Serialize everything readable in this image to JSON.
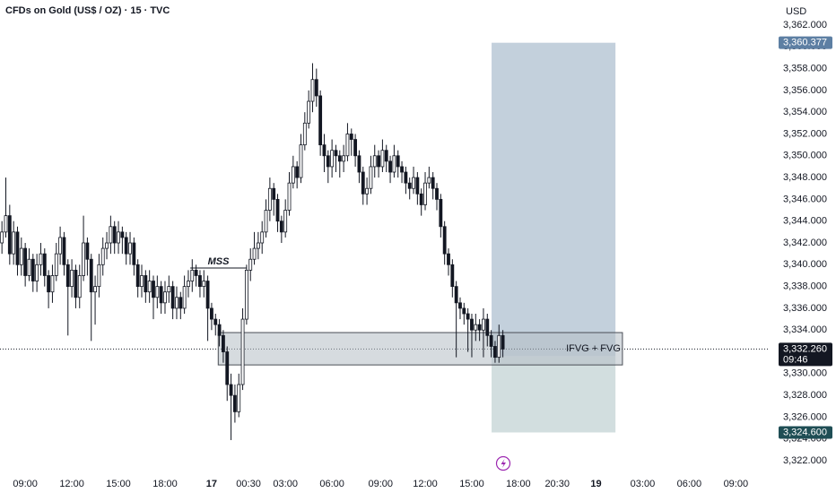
{
  "chart_data": {
    "type": "candlestick",
    "title": "CFDs on Gold (US$ / OZ) · 15 · TVC",
    "currency": "USD",
    "colors": {
      "up": "#ffffff",
      "down": "#131722",
      "edge": "#131722"
    },
    "open": [
      3342,
      3343,
      3344.5,
      3341,
      3343,
      3340,
      3341.5,
      3339,
      3340.5,
      3338.5,
      3340,
      3341,
      3339,
      3337.5,
      3339,
      3341,
      3342.5,
      3340,
      3338,
      3339.5,
      3337,
      3339,
      3342,
      3340.5,
      3337.5,
      3338,
      3340,
      3341.5,
      3342,
      3343.5,
      3342,
      3343,
      3342.5,
      3341,
      3342,
      3340,
      3338,
      3339,
      3337.5,
      3338.5,
      3337,
      3338,
      3336.5,
      3337.5,
      3338,
      3336,
      3337,
      3336,
      3338,
      3338.5,
      3339.5,
      3339,
      3338,
      3338.5,
      3336,
      3335,
      3334.5,
      3333.5,
      3332,
      3329,
      3328,
      3326.5,
      3329,
      3335,
      3339.5,
      3340.5,
      3341.5,
      3342,
      3343,
      3345,
      3347,
      3346,
      3344,
      3343,
      3345,
      3347.5,
      3349,
      3348,
      3351,
      3353,
      3355,
      3357,
      3355.5,
      3351,
      3350,
      3349,
      3350.5,
      3350,
      3349.5,
      3350,
      3352,
      3351.5,
      3350,
      3348.5,
      3346.5,
      3347,
      3349,
      3350,
      3349,
      3350.5,
      3349.5,
      3348.5,
      3350,
      3349,
      3348.5,
      3347.5,
      3347,
      3348,
      3346.5,
      3345.5,
      3347.5,
      3348,
      3347,
      3346,
      3343.5,
      3341,
      3340,
      3338,
      3336.5,
      3336,
      3335.5,
      3335,
      3334,
      3334.5,
      3334,
      3335,
      3333.5,
      3332.5,
      3331.5,
      3333.5
    ],
    "high": [
      3344,
      3348,
      3345.5,
      3344,
      3343.5,
      3342.5,
      3342,
      3341.5,
      3341,
      3341,
      3342,
      3341.5,
      3339.5,
      3340,
      3342,
      3343.5,
      3343,
      3340.5,
      3340.5,
      3340,
      3340,
      3344.5,
      3342.5,
      3341,
      3339,
      3341,
      3342.5,
      3343,
      3344.5,
      3344,
      3344,
      3343.5,
      3343,
      3343,
      3342.5,
      3340.5,
      3340,
      3339.5,
      3339.5,
      3339,
      3339,
      3338.5,
      3338.5,
      3339,
      3338.5,
      3338,
      3337.5,
      3339,
      3339.5,
      3340.5,
      3340,
      3339.5,
      3339.5,
      3339,
      3336.5,
      3335.5,
      3335,
      3334,
      3332.5,
      3330,
      3329,
      3330,
      3336,
      3340,
      3341.5,
      3343,
      3343,
      3344,
      3346,
      3348,
      3347.5,
      3346.5,
      3344.5,
      3346,
      3348.5,
      3350,
      3349.5,
      3352,
      3354,
      3356,
      3358.5,
      3358,
      3356,
      3352,
      3350.5,
      3351.5,
      3351,
      3350.5,
      3351,
      3353,
      3352.5,
      3352,
      3350.5,
      3349,
      3348,
      3350,
      3351,
      3350.5,
      3351.5,
      3351,
      3350,
      3351,
      3350.5,
      3349.5,
      3349,
      3348,
      3349,
      3348.5,
      3347,
      3348.5,
      3349,
      3348.5,
      3347.5,
      3346.5,
      3344,
      3341.5,
      3340.5,
      3338.5,
      3337,
      3336.5,
      3336,
      3335.5,
      3335.5,
      3335,
      3336,
      3335.5,
      3334,
      3333,
      3334.5,
      3334
    ],
    "low": [
      3341,
      3342.5,
      3340,
      3340,
      3339,
      3339,
      3338,
      3338.5,
      3337.5,
      3337.5,
      3339,
      3338,
      3336,
      3336.5,
      3338.5,
      3340,
      3339,
      3333.5,
      3337,
      3336,
      3336,
      3338.5,
      3339,
      3333,
      3334.5,
      3337,
      3339,
      3340.5,
      3341,
      3341,
      3341,
      3341,
      3340,
      3340,
      3339,
      3337,
      3337,
      3336.5,
      3336.5,
      3335,
      3336,
      3335.5,
      3335.5,
      3336.5,
      3335,
      3335,
      3335,
      3335.5,
      3337,
      3337.5,
      3338,
      3337,
      3337,
      3333,
      3334,
      3333.5,
      3332.5,
      3331,
      3327.5,
      3323.9,
      3325.5,
      3326,
      3328.5,
      3334.5,
      3338.5,
      3340,
      3340.5,
      3341,
      3342.5,
      3344,
      3344.5,
      3343,
      3342,
      3342.5,
      3344.5,
      3347,
      3347,
      3347.5,
      3350.5,
      3352.5,
      3354,
      3354.5,
      3350,
      3348.5,
      3347.5,
      3348,
      3348.5,
      3348,
      3348.5,
      3349.5,
      3350,
      3349,
      3347.5,
      3345.5,
      3345.5,
      3346.5,
      3348,
      3348,
      3348.5,
      3348.5,
      3347.5,
      3348,
      3348,
      3347.5,
      3346.5,
      3346,
      3346.5,
      3345.5,
      3344.5,
      3345,
      3347,
      3346,
      3345,
      3342.5,
      3340,
      3339,
      3337,
      3331.5,
      3335,
      3334.5,
      3332,
      3331.5,
      3333,
      3333,
      3331.5,
      3332.5,
      3331.5,
      3331,
      3331,
      3331.5
    ],
    "close": [
      3343,
      3344.5,
      3341,
      3343,
      3340,
      3341.5,
      3339,
      3340.5,
      3338.5,
      3340,
      3341,
      3339,
      3337.5,
      3339,
      3341,
      3342.5,
      3340,
      3338,
      3339.5,
      3337,
      3339,
      3342,
      3340.5,
      3337.5,
      3338,
      3340,
      3341.5,
      3342,
      3343.5,
      3342,
      3343,
      3342.5,
      3341,
      3342,
      3340,
      3338,
      3339,
      3337.5,
      3338.5,
      3337,
      3338,
      3336.5,
      3337.5,
      3338,
      3336,
      3337,
      3336,
      3338,
      3338.5,
      3339.5,
      3339,
      3338,
      3338.5,
      3336,
      3335,
      3334.5,
      3333.5,
      3332,
      3329,
      3328,
      3326.5,
      3329,
      3335,
      3339.5,
      3340.5,
      3341.5,
      3342,
      3343,
      3345,
      3347,
      3346,
      3344,
      3343,
      3345,
      3347.5,
      3349,
      3348,
      3351,
      3353,
      3355,
      3357,
      3355.5,
      3351,
      3350,
      3349,
      3350.5,
      3350,
      3349.5,
      3350,
      3352,
      3351.5,
      3350,
      3348.5,
      3346.5,
      3347,
      3349,
      3350,
      3349,
      3350.5,
      3349.5,
      3348.5,
      3350,
      3349,
      3348.5,
      3347.5,
      3347,
      3348,
      3346.5,
      3345.5,
      3347.5,
      3348,
      3347,
      3346,
      3343.5,
      3341,
      3340,
      3338,
      3336.5,
      3336,
      3335.5,
      3335,
      3334,
      3334.5,
      3334,
      3335,
      3333.5,
      3332.5,
      3331.5,
      3333.5,
      3332.26
    ],
    "xlim": [
      -0.5,
      197.7
    ],
    "xticks": [
      {
        "value": 6,
        "label": "09:00"
      },
      {
        "value": 18,
        "label": "12:00"
      },
      {
        "value": 30,
        "label": "15:00"
      },
      {
        "value": 42,
        "label": "18:00"
      },
      {
        "value": 54,
        "label": "17"
      },
      {
        "value": 63.5,
        "label": "00:30"
      },
      {
        "value": 73,
        "label": "03:00"
      },
      {
        "value": 85,
        "label": "06:00"
      },
      {
        "value": 97.5,
        "label": "09:00"
      },
      {
        "value": 109,
        "label": "12:00"
      },
      {
        "value": 121,
        "label": "15:00"
      },
      {
        "value": 133,
        "label": "18:00"
      },
      {
        "value": 143,
        "label": "20:30"
      },
      {
        "value": 153,
        "label": "19"
      },
      {
        "value": 165,
        "label": "03:00"
      },
      {
        "value": 177,
        "label": "06:00"
      },
      {
        "value": 189,
        "label": "09:00"
      }
    ],
    "ylim": [
      3321.1,
      3364.3
    ],
    "yticks": [
      {
        "value": 3322,
        "label": "3,322.000"
      },
      {
        "value": 3324,
        "label": "3,324.000"
      },
      {
        "value": 3326,
        "label": "3,326.000"
      },
      {
        "value": 3328,
        "label": "3,328.000"
      },
      {
        "value": 3330,
        "label": "3,330.000"
      },
      {
        "value": 3332,
        "label": "3,332.000"
      },
      {
        "value": 3334,
        "label": "3,334.000"
      },
      {
        "value": 3336,
        "label": "3,336.000"
      },
      {
        "value": 3338,
        "label": "3,338.000"
      },
      {
        "value": 3340,
        "label": "3,340.000"
      },
      {
        "value": 3342,
        "label": "3,342.000"
      },
      {
        "value": 3344,
        "label": "3,344.000"
      },
      {
        "value": 3346,
        "label": "3,346.000"
      },
      {
        "value": 3348,
        "label": "3,348.000"
      },
      {
        "value": 3350,
        "label": "3,350.000"
      },
      {
        "value": 3352,
        "label": "3,352.000"
      },
      {
        "value": 3354,
        "label": "3,354.000"
      },
      {
        "value": 3356,
        "label": "3,356.000"
      },
      {
        "value": 3358,
        "label": "3,358.000"
      },
      {
        "value": 3360,
        "label": "3,360.000"
      },
      {
        "value": 3362,
        "label": "3,362.000"
      }
    ],
    "last_price": {
      "value": 3332.26,
      "label": "3,332.260"
    },
    "countdown": "09:46",
    "mss": {
      "label": "MSS",
      "y": 3339.7,
      "x": [
        48.5,
        63
      ]
    },
    "fvg": {
      "label": "IFVG + FVG",
      "y": [
        3330.8,
        3333.77
      ],
      "x": [
        55.7,
        159.8
      ]
    },
    "position": {
      "x": [
        126.1,
        158
      ],
      "take_profit": {
        "value": 3360.377,
        "label": "3,360.377"
      },
      "entry": 3331.6,
      "stop_loss": {
        "value": 3324.6,
        "label": "3,324.600"
      }
    }
  }
}
